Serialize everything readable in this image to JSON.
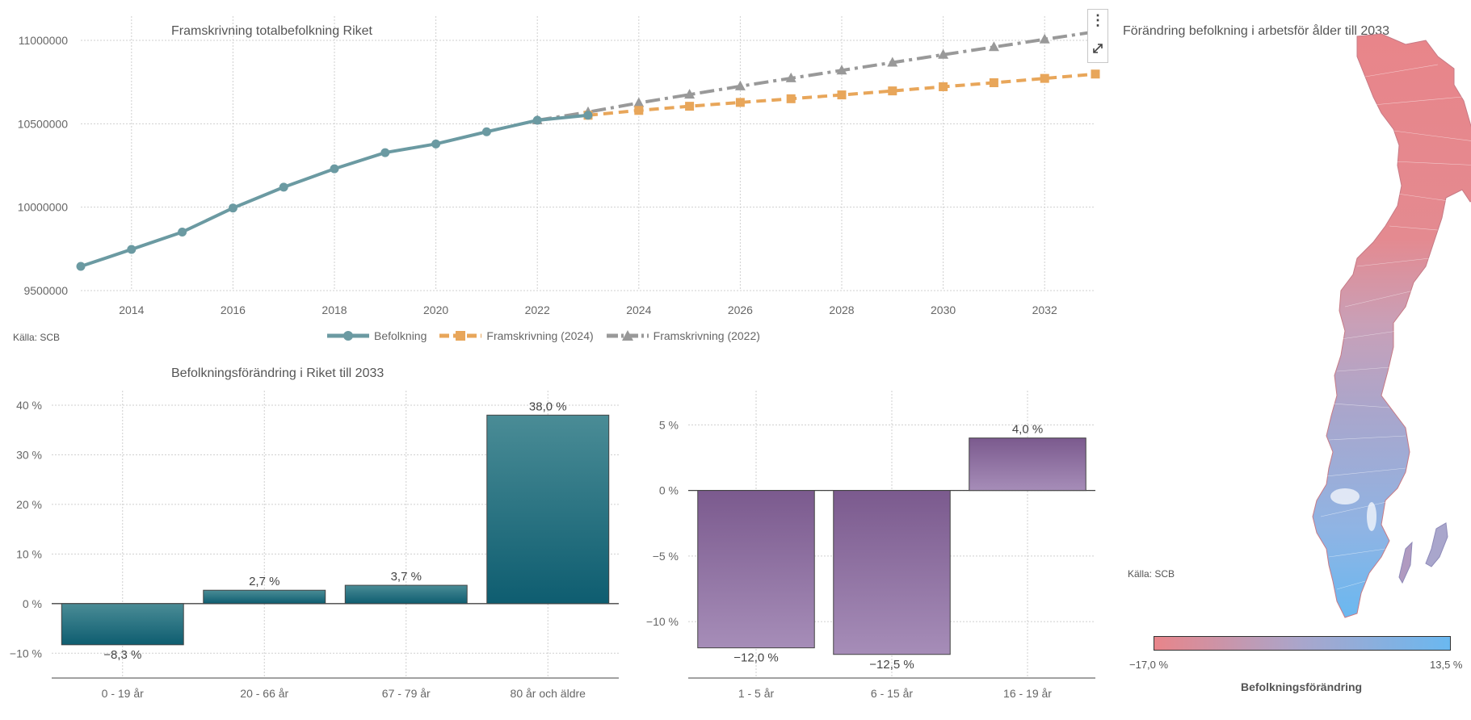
{
  "line_panel": {
    "title": "Framskrivning  totalbefolkning Riket",
    "source": "Källa: SCB"
  },
  "age_panel": {
    "title": "Befolkningsförändring i Riket till 2033"
  },
  "map_panel": {
    "title": "Förändring befolkning i arbetsför ålder till 2033",
    "source": "Källa: SCB",
    "colorbar_title": "Befolkningsförändring",
    "colorbar_min": "−17,0 %",
    "colorbar_max": "13,5 %",
    "color_low": "#e8858a",
    "color_mid": "#a9a6cc",
    "color_high": "#6ab8f0"
  },
  "menu": {
    "dots_icon": "more-vertical-icon",
    "expand_icon": "expand-icon"
  },
  "chart_data": [
    {
      "type": "line",
      "title": "Framskrivning  totalbefolkning Riket",
      "ylim": [
        9500000,
        11000000
      ],
      "yticks": [
        "9500000",
        "10000000",
        "10500000",
        "11000000"
      ],
      "xticks": [
        "2014",
        "2016",
        "2018",
        "2020",
        "2022",
        "2024",
        "2026",
        "2028",
        "2030",
        "2032"
      ],
      "xlim": [
        2013,
        2033
      ],
      "grid": true,
      "legend": "bottom-center",
      "series": [
        {
          "name": "Befolkning",
          "color": "#6b9aa2",
          "style": "solid",
          "marker": "circle",
          "x": [
            2013,
            2014,
            2015,
            2016,
            2017,
            2018,
            2019,
            2020,
            2021,
            2022,
            2023
          ],
          "values": [
            9645000,
            9747000,
            9851000,
            9995000,
            10120000,
            10230000,
            10327000,
            10379000,
            10452000,
            10521000,
            10551000
          ]
        },
        {
          "name": "Framskrivning (2024)",
          "color": "#e8a65a",
          "style": "dashed",
          "marker": "square",
          "x": [
            2023,
            2024,
            2025,
            2026,
            2027,
            2028,
            2029,
            2030,
            2031,
            2032,
            2033
          ],
          "values": [
            10551000,
            10580000,
            10605000,
            10628000,
            10650000,
            10673000,
            10697000,
            10722000,
            10746000,
            10772000,
            10798000
          ]
        },
        {
          "name": "Framskrivning (2022)",
          "color": "#999999",
          "style": "dashdot",
          "marker": "triangle",
          "x": [
            2022,
            2023,
            2024,
            2025,
            2026,
            2027,
            2028,
            2029,
            2030,
            2031,
            2032,
            2033
          ],
          "values": [
            10521000,
            10570000,
            10625000,
            10675000,
            10725000,
            10773000,
            10820000,
            10867000,
            10914000,
            10960000,
            11006000,
            11052000
          ]
        }
      ]
    },
    {
      "type": "bar",
      "title": "Befolkningsförändring i Riket till 2033",
      "categories": [
        "0 - 19 år",
        "20 - 66 år",
        "67 - 79 år",
        "80 år och äldre"
      ],
      "values": [
        -8.3,
        2.7,
        3.7,
        38.0
      ],
      "labels": [
        "−8,3 %",
        "2,7 %",
        "3,7 %",
        "38,0 %"
      ],
      "yticks": [
        "40 %",
        "30 %",
        "20 %",
        "10 %",
        "0 %",
        "−10 %"
      ],
      "ylim": [
        -15,
        40
      ],
      "color": "#186b7c"
    },
    {
      "type": "bar",
      "categories": [
        "1 - 5 år",
        "6 - 15 år",
        "16 - 19 år"
      ],
      "values": [
        -12.0,
        -12.5,
        4.0
      ],
      "labels": [
        "−12,0 %",
        "−12,5 %",
        "4,0 %"
      ],
      "yticks": [
        "5 %",
        "0 %",
        "−5 %",
        "−10 %"
      ],
      "ylim": [
        -14.3,
        6.5
      ],
      "color": "#7b5a8e"
    }
  ]
}
